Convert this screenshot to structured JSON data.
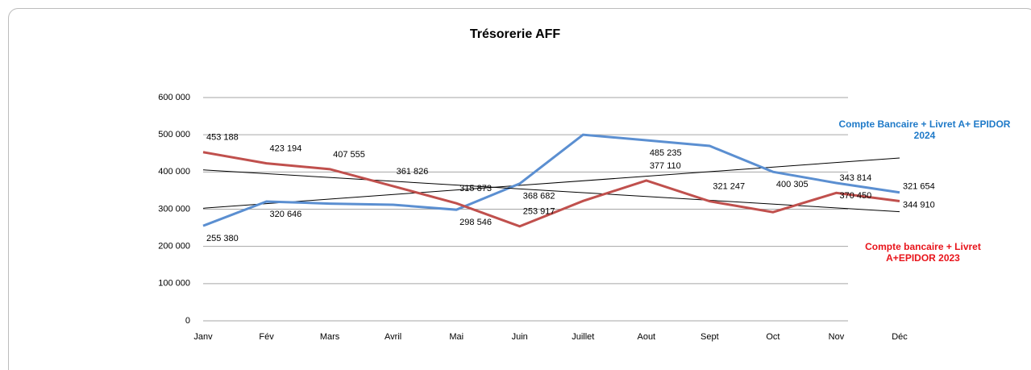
{
  "chart_data": {
    "type": "line",
    "title": "Trésorerie AFF",
    "categories": [
      "Janv",
      "Fév",
      "Mars",
      "Avril",
      "Mai",
      "Juin",
      "Juillet",
      "Aout",
      "Sept",
      "Oct",
      "Nov",
      "Déc"
    ],
    "series": [
      {
        "name": "Compte Bancaire  + Livret A+ EPIDOR 2024",
        "color": "#5b8fd1",
        "legend_color": "#1f7ac8",
        "values": [
          255380,
          320646,
          315000,
          312000,
          298546,
          368682,
          500000,
          485235,
          470000,
          400305,
          370450,
          344910
        ],
        "value_labels": [
          "255 380",
          "320 646",
          null,
          null,
          "298 546",
          "368 682",
          null,
          "485 235",
          null,
          "400 305",
          "370 450",
          "344 910"
        ]
      },
      {
        "name": "Compte bancaire + Livret A+EPIDOR 2023",
        "color": "#c0504d",
        "legend_color": "#e8141b",
        "values": [
          453188,
          423194,
          407555,
          361826,
          315873,
          253917,
          322000,
          377110,
          321247,
          292000,
          343814,
          321654
        ],
        "value_labels": [
          "453 188",
          "423 194",
          "407 555",
          "361 826",
          "315 873",
          "253 917",
          null,
          "377 110",
          "321 247",
          null,
          "343 814",
          "321 654"
        ]
      }
    ],
    "ylim": [
      0,
      600000
    ],
    "yticks": [
      0,
      {
        "value": 100000,
        "label": "100 000"
      },
      {
        "value": 200000,
        "label": "200 000"
      },
      {
        "value": 300000,
        "label": "300 000"
      },
      {
        "value": 400000,
        "label": "400 000"
      },
      {
        "value": 500000,
        "label": "500 000"
      },
      {
        "value": 600000,
        "label": "600 000"
      }
    ],
    "grid": true,
    "trendline": true
  }
}
